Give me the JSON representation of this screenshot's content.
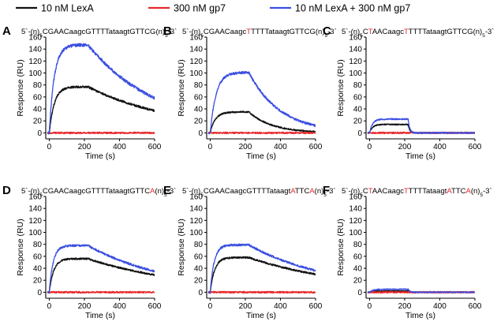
{
  "legend": [
    {
      "label": "10 nM LexA",
      "color": "#111111"
    },
    {
      "label": "300 nM gp7",
      "color": "#e8282b"
    },
    {
      "label": "10 nM LexA + 300 nM gp7",
      "color": "#3b4fe0"
    }
  ],
  "colors": {
    "highlight": "#e8282b"
  },
  "chart_data": [
    {
      "panel": "A",
      "type": "line",
      "sequence": [
        {
          "t": "5`-(n)"
        },
        {
          "t": "5",
          "sub": true
        },
        {
          "t": "CGAACaagcGTTTTataagtGTTCG(n)"
        },
        {
          "t": "5",
          "sub": true
        },
        {
          "t": "-3`"
        }
      ],
      "xlabel": "Time (s)",
      "ylabel": "Response (RU)",
      "xlim": [
        -20,
        600
      ],
      "ylim": [
        -10,
        160
      ],
      "xticks": [
        0,
        200,
        400,
        600
      ],
      "yticks": [
        0,
        20,
        40,
        60,
        80,
        100,
        120,
        140,
        160
      ],
      "injection_end": 220,
      "series": [
        {
          "name": "10 nM LexA",
          "plateau": 77,
          "end": 37,
          "ka": 0.035
        },
        {
          "name": "300 nM gp7",
          "plateau": 0,
          "end": 0,
          "ka": 0.05
        },
        {
          "name": "10 nM LexA + 300 nM gp7",
          "plateau": 147,
          "end": 58,
          "ka": 0.035
        }
      ]
    },
    {
      "panel": "B",
      "type": "line",
      "sequence": [
        {
          "t": "5`-(n)"
        },
        {
          "t": "5",
          "sub": true
        },
        {
          "t": "CGAACaagc"
        },
        {
          "t": "T",
          "hl": true
        },
        {
          "t": "TTTTataagtGTTCG(n)"
        },
        {
          "t": "5",
          "sub": true
        },
        {
          "t": "-3`"
        }
      ],
      "xlabel": "Time (s)",
      "ylabel": "Response (RU)",
      "xlim": [
        -20,
        600
      ],
      "ylim": [
        -10,
        160
      ],
      "xticks": [
        0,
        200,
        400,
        600
      ],
      "yticks": [
        0,
        20,
        40,
        60,
        80,
        100,
        120,
        140,
        160
      ],
      "injection_end": 220,
      "series": [
        {
          "name": "10 nM LexA",
          "plateau": 35,
          "end": 2,
          "ka": 0.035
        },
        {
          "name": "300 nM gp7",
          "plateau": 0,
          "end": 0,
          "ka": 0.05
        },
        {
          "name": "10 nM LexA + 300 nM gp7",
          "plateau": 101,
          "end": 12,
          "ka": 0.03
        }
      ]
    },
    {
      "panel": "C",
      "type": "line",
      "sequence": [
        {
          "t": "5`-(n)"
        },
        {
          "t": "5",
          "sub": true
        },
        {
          "t": "C"
        },
        {
          "t": "T",
          "hl": true
        },
        {
          "t": "AACaagc"
        },
        {
          "t": "T",
          "hl": true
        },
        {
          "t": "TTTTataagtGTTCG(n)"
        },
        {
          "t": "5",
          "sub": true
        },
        {
          "t": "-3`"
        }
      ],
      "xlabel": "Time (s)",
      "ylabel": "Response (RU)",
      "xlim": [
        -20,
        600
      ],
      "ylim": [
        -10,
        160
      ],
      "xticks": [
        0,
        200,
        400,
        600
      ],
      "yticks": [
        0,
        20,
        40,
        60,
        80,
        100,
        120,
        140,
        160
      ],
      "injection_end": 220,
      "series": [
        {
          "name": "10 nM LexA",
          "plateau": 14,
          "end": 0,
          "ka": 0.06
        },
        {
          "name": "300 nM gp7",
          "plateau": 0,
          "end": 0,
          "ka": 0.05
        },
        {
          "name": "10 nM LexA + 300 nM gp7",
          "plateau": 23,
          "end": 0,
          "ka": 0.06
        }
      ]
    },
    {
      "panel": "D",
      "type": "line",
      "sequence": [
        {
          "t": "5`-(n)"
        },
        {
          "t": "5",
          "sub": true
        },
        {
          "t": "CGAACaagcGTTTTataagtGTTC"
        },
        {
          "t": "A",
          "hl": true
        },
        {
          "t": "(n)"
        },
        {
          "t": "5",
          "sub": true
        },
        {
          "t": "-3`"
        }
      ],
      "xlabel": "Time (s)",
      "ylabel": "Response (RU)",
      "xlim": [
        -20,
        600
      ],
      "ylim": [
        -10,
        160
      ],
      "xticks": [
        0,
        200,
        400,
        600
      ],
      "yticks": [
        0,
        20,
        40,
        60,
        80,
        100,
        120,
        140,
        160
      ],
      "injection_end": 220,
      "series": [
        {
          "name": "10 nM LexA",
          "plateau": 56,
          "end": 29,
          "ka": 0.04
        },
        {
          "name": "300 nM gp7",
          "plateau": 0,
          "end": 0,
          "ka": 0.05
        },
        {
          "name": "10 nM LexA + 300 nM gp7",
          "plateau": 78,
          "end": 35,
          "ka": 0.045
        }
      ]
    },
    {
      "panel": "E",
      "type": "line",
      "sequence": [
        {
          "t": "5`-(n)"
        },
        {
          "t": "5",
          "sub": true
        },
        {
          "t": "CGAACaagcGTTTTataagt"
        },
        {
          "t": "A",
          "hl": true
        },
        {
          "t": "TTC"
        },
        {
          "t": "A",
          "hl": true
        },
        {
          "t": "(n)"
        },
        {
          "t": "5",
          "sub": true
        },
        {
          "t": "-3`"
        }
      ],
      "xlabel": "Time (s)",
      "ylabel": "Response (RU)",
      "xlim": [
        -20,
        600
      ],
      "ylim": [
        -10,
        160
      ],
      "xticks": [
        0,
        200,
        400,
        600
      ],
      "yticks": [
        0,
        20,
        40,
        60,
        80,
        100,
        120,
        140,
        160
      ],
      "injection_end": 220,
      "series": [
        {
          "name": "10 nM LexA",
          "plateau": 58,
          "end": 30,
          "ka": 0.04
        },
        {
          "name": "300 nM gp7",
          "plateau": 0,
          "end": 0,
          "ka": 0.05
        },
        {
          "name": "10 nM LexA + 300 nM gp7",
          "plateau": 79,
          "end": 36,
          "ka": 0.045
        }
      ]
    },
    {
      "panel": "F",
      "type": "line",
      "sequence": [
        {
          "t": "5`-(n)"
        },
        {
          "t": "5",
          "sub": true
        },
        {
          "t": "C"
        },
        {
          "t": "T",
          "hl": true
        },
        {
          "t": "AACaagc"
        },
        {
          "t": "T",
          "hl": true
        },
        {
          "t": "TTTTataagt"
        },
        {
          "t": "A",
          "hl": true
        },
        {
          "t": "TTC"
        },
        {
          "t": "A",
          "hl": true
        },
        {
          "t": "(n)"
        },
        {
          "t": "5",
          "sub": true
        },
        {
          "t": "-3`"
        }
      ],
      "xlabel": "Time (s)",
      "ylabel": "Response (RU)",
      "xlim": [
        -20,
        600
      ],
      "ylim": [
        -10,
        160
      ],
      "xticks": [
        0,
        200,
        400,
        600
      ],
      "yticks": [
        0,
        20,
        40,
        60,
        80,
        100,
        120,
        140,
        160
      ],
      "injection_end": 220,
      "series": [
        {
          "name": "10 nM LexA",
          "plateau": 2,
          "end": 0,
          "ka": 0.05
        },
        {
          "name": "300 nM gp7",
          "plateau": 0,
          "end": 0,
          "ka": 0.05
        },
        {
          "name": "10 nM LexA + 300 nM gp7",
          "plateau": 5,
          "end": 0,
          "ka": 0.05
        }
      ]
    }
  ]
}
